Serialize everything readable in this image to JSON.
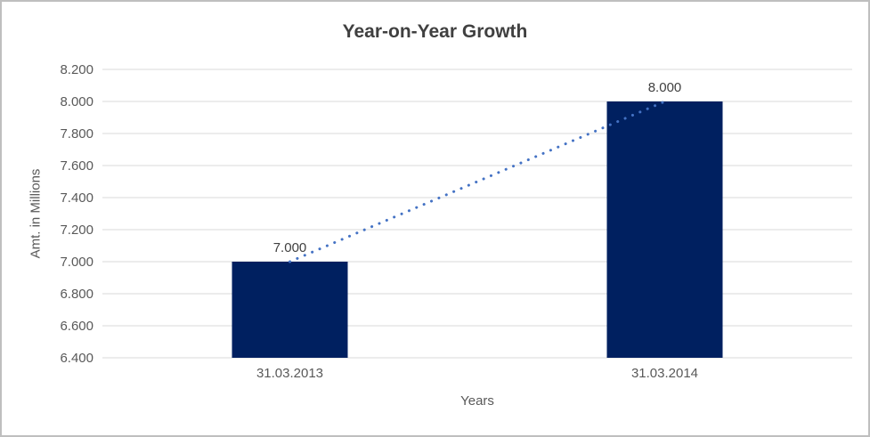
{
  "chart_data": {
    "type": "bar",
    "title": "Year-on-Year Growth",
    "xlabel": "Years",
    "ylabel": "Amt. in Millions",
    "categories": [
      "31.03.2013",
      "31.03.2014"
    ],
    "series": [
      {
        "name": "Amt. in Millions",
        "values": [
          7.0,
          8.0
        ]
      }
    ],
    "data_labels": [
      "7.000",
      "8.000"
    ],
    "ylim": [
      6.4,
      8.2
    ],
    "ytick_step": 0.2,
    "ytick_labels": [
      "8.200",
      "8.000",
      "7.800",
      "7.600",
      "7.400",
      "7.200",
      "7.000",
      "6.800",
      "6.600",
      "6.400"
    ],
    "grid": true,
    "legend": "none",
    "trendline": {
      "type": "linear",
      "style": "dotted"
    },
    "colors": {
      "bar": "#002060",
      "trendline": "#4472c4",
      "gridline": "#d9d9d9",
      "title_text": "#404040",
      "axis_text": "#595959",
      "data_label_text": "#404040",
      "frame_border": "#bfbfbf"
    }
  }
}
